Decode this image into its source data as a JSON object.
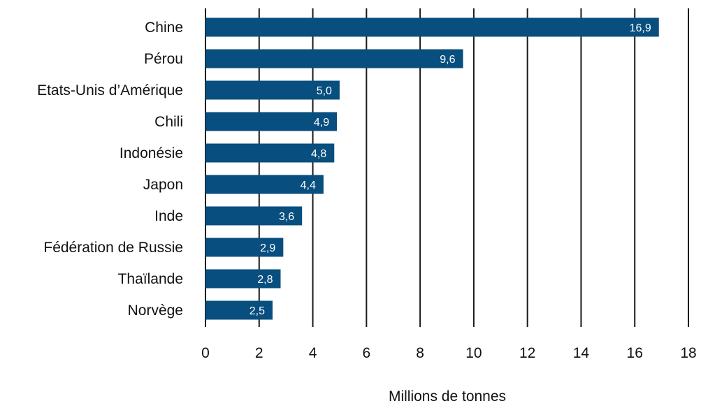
{
  "chart_data": {
    "type": "bar",
    "orientation": "horizontal",
    "categories": [
      "Chine",
      "Pérou",
      "Etats-Unis d’Amérique",
      "Chili",
      "Indonésie",
      "Japon",
      "Inde",
      "Fédération de Russie",
      "Thaïlande",
      "Norvège"
    ],
    "values": [
      16.9,
      9.6,
      5.0,
      4.9,
      4.8,
      4.4,
      3.6,
      2.9,
      2.8,
      2.5
    ],
    "value_labels": [
      "16,9",
      "9,6",
      "5,0",
      "4,9",
      "4,8",
      "4,4",
      "3,6",
      "2,9",
      "2,8",
      "2,5"
    ],
    "xlabel": "Millions de tonnes",
    "xlim": [
      0,
      18
    ],
    "xticks": [
      0,
      2,
      4,
      6,
      8,
      10,
      12,
      14,
      16,
      18
    ],
    "grid": "vertical",
    "bar_color": "#084e7e",
    "grid_color": "#1a1a1a"
  }
}
